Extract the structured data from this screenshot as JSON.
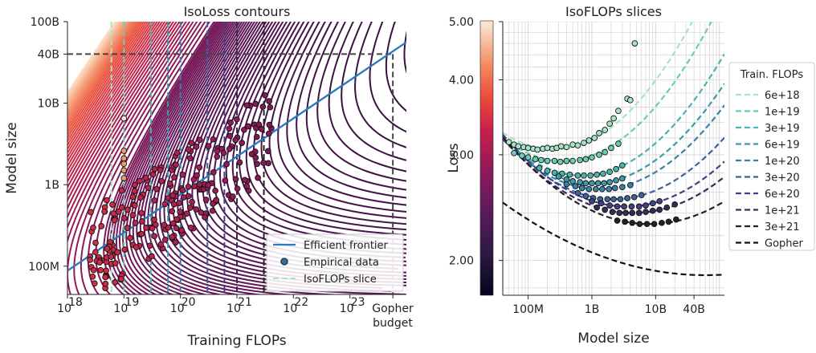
{
  "chart_data": [
    {
      "type": "contour",
      "title": "IsoLoss contours",
      "xlabel": "Training FLOPs",
      "ylabel": "Model size",
      "xscale": "log",
      "yscale": "log",
      "xlim": [
        1e+18,
        1e+24
      ],
      "ylim": [
        45000000.0,
        100000000000.0
      ],
      "x_ticks": [
        {
          "value": 1e+18,
          "base": "10",
          "exp": "18"
        },
        {
          "value": 1e+19,
          "base": "10",
          "exp": "19"
        },
        {
          "value": 1e+20,
          "base": "10",
          "exp": "20"
        },
        {
          "value": 1e+21,
          "base": "10",
          "exp": "21"
        },
        {
          "value": 1e+22,
          "base": "10",
          "exp": "22"
        },
        {
          "value": 1e+23,
          "base": "10",
          "exp": "23"
        }
      ],
      "gopher_budget_label": [
        "Gopher",
        "budget"
      ],
      "gopher_budget_flops": 5.76e+23,
      "y_ticks": [
        {
          "value": 100000000.0,
          "label": "100M"
        },
        {
          "value": 1000000000.0,
          "label": "1B"
        },
        {
          "value": 10000000000.0,
          "label": "10B"
        },
        {
          "value": 40000000000.0,
          "label": "40B"
        },
        {
          "value": 100000000000.0,
          "label": "100B"
        }
      ],
      "frontier": {
        "x": [
          1e+18,
          1e+24
        ],
        "y": [
          88000000.0,
          56000000000.0
        ],
        "color": "#2b7bba"
      },
      "gopher_model_size": 40000000000.0,
      "isoflops_slices": [
        {
          "flops": 6e+18,
          "color": "#a7e3c5"
        },
        {
          "flops": 1e+19,
          "color": "#6ccbb5"
        },
        {
          "flops": 3e+19,
          "color": "#4ab3ae"
        },
        {
          "flops": 6e+19,
          "color": "#3d9aab"
        },
        {
          "flops": 1e+20,
          "color": "#3a80a6"
        },
        {
          "flops": 3e+20,
          "color": "#3d619c"
        },
        {
          "flops": 6e+20,
          "color": "#423f85"
        },
        {
          "flops": 1e+21,
          "color": "#3a2a56"
        },
        {
          "flops": 3e+21,
          "color": "#222222"
        }
      ],
      "legend": {
        "position": "lower-right",
        "entries": [
          "Efficient frontier",
          "Empirical data",
          "IsoFLOPs slice"
        ]
      },
      "grid": false
    },
    {
      "type": "line",
      "title": "IsoFLOPs slices",
      "xlabel": "Model size",
      "ylabel": "Loss",
      "xscale": "log",
      "yscale": "log",
      "xlim": [
        40000000.0,
        120000000000.0
      ],
      "ylim": [
        1.75,
        5.0
      ],
      "x_ticks": [
        {
          "value": 100000000.0,
          "label": "100M"
        },
        {
          "value": 1000000000.0,
          "label": "1B"
        },
        {
          "value": 10000000000.0,
          "label": "10B"
        },
        {
          "value": 40000000000.0,
          "label": "40B"
        }
      ],
      "y_ticks": [
        {
          "value": 2.0,
          "label": "2.00"
        },
        {
          "value": 3.0,
          "label": "3.00"
        },
        {
          "value": 4.0,
          "label": "4.00"
        },
        {
          "value": 5.0,
          "label": "5.00"
        }
      ],
      "grid": true,
      "legend": {
        "position": "right",
        "title": "Train. FLOPs"
      },
      "series": [
        {
          "name": "6e+18",
          "color": "#a7e3c5",
          "optimum_size": 250000000.0,
          "min_loss": 3.06,
          "x_points": [
            50000000.0,
            60000000.0,
            70000000.0,
            85000000.0,
            100000000.0,
            120000000.0,
            140000000.0,
            170000000.0,
            200000000.0,
            240000000.0,
            280000000.0,
            330000000.0,
            400000000.0,
            500000000.0,
            600000000.0,
            750000000.0,
            900000000.0,
            1100000000.0,
            1300000000.0,
            1600000000.0,
            1900000000.0,
            2200000000.0,
            2600000000.0
          ],
          "y_points": [
            3.15,
            3.12,
            3.1,
            3.09,
            3.08,
            3.07,
            3.06,
            3.07,
            3.08,
            3.07,
            3.08,
            3.1,
            3.09,
            3.12,
            3.11,
            3.14,
            3.17,
            3.2,
            3.26,
            3.3,
            3.38,
            3.45,
            3.55
          ],
          "outliers": [
            {
              "x": 3600000000.0,
              "y": 3.72
            },
            {
              "x": 4000000000.0,
              "y": 3.7
            },
            {
              "x": 4700000000.0,
              "y": 4.6
            }
          ]
        },
        {
          "name": "1e+19",
          "color": "#6ccbb5",
          "optimum_size": 350000000.0,
          "min_loss": 2.93,
          "x_points": [
            60000000.0,
            80000000.0,
            100000000.0,
            130000000.0,
            160000000.0,
            200000000.0,
            260000000.0,
            320000000.0,
            400000000.0,
            500000000.0,
            650000000.0,
            800000000.0,
            1000000000.0,
            1300000000.0,
            1600000000.0,
            2000000000.0,
            2600000000.0
          ],
          "y_points": [
            3.02,
            2.99,
            2.97,
            2.95,
            2.94,
            2.93,
            2.93,
            2.92,
            2.93,
            2.93,
            2.94,
            2.95,
            2.97,
            3.0,
            3.03,
            3.08,
            3.13
          ]
        },
        {
          "name": "3e+19",
          "color": "#4ab3ae",
          "optimum_size": 700000000.0,
          "min_loss": 2.77,
          "x_points": [
            150000000.0,
            200000000.0,
            260000000.0,
            340000000.0,
            450000000.0,
            600000000.0,
            750000000.0,
            950000000.0,
            1200000000.0,
            1500000000.0,
            1900000000.0,
            2400000000.0,
            3000000000.0
          ],
          "y_points": [
            2.85,
            2.82,
            2.8,
            2.79,
            2.78,
            2.77,
            2.77,
            2.77,
            2.78,
            2.79,
            2.81,
            2.84,
            2.88
          ]
        },
        {
          "name": "6e+19",
          "color": "#3d9aab",
          "optimum_size": 1000000000.0,
          "min_loss": 2.69,
          "x_points": [
            300000000.0,
            400000000.0,
            500000000.0,
            650000000.0,
            800000000.0,
            1000000000.0,
            1250000000.0,
            1550000000.0,
            1900000000.0,
            2400000000.0,
            3000000000.0
          ],
          "y_points": [
            2.76,
            2.73,
            2.71,
            2.7,
            2.69,
            2.69,
            2.69,
            2.69,
            2.7,
            2.72,
            2.74
          ]
        },
        {
          "name": "1e+20",
          "color": "#3a80a6",
          "optimum_size": 1300000000.0,
          "min_loss": 2.63,
          "x_points": [
            400000000.0,
            550000000.0,
            700000000.0,
            900000000.0,
            1150000000.0,
            1450000000.0,
            1850000000.0,
            2300000000.0,
            3000000000.0,
            4000000000.0
          ],
          "y_points": [
            2.68,
            2.66,
            2.64,
            2.63,
            2.63,
            2.63,
            2.63,
            2.64,
            2.65,
            2.67
          ]
        },
        {
          "name": "3e+20",
          "color": "#3d619c",
          "optimum_size": 2200000000.0,
          "min_loss": 2.53,
          "x_points": [
            600000000.0,
            800000000.0,
            1050000000.0,
            1350000000.0,
            1750000000.0,
            2200000000.0,
            2800000000.0,
            3600000000.0,
            4600000000.0,
            6000000000.0
          ],
          "y_points": [
            2.59,
            2.56,
            2.54,
            2.53,
            2.53,
            2.53,
            2.53,
            2.54,
            2.55,
            2.57
          ]
        },
        {
          "name": "6e+20",
          "color": "#423f85",
          "optimum_size": 3500000000.0,
          "min_loss": 2.46,
          "x_points": [
            1000000000.0,
            1400000000.0,
            1900000000.0,
            2500000000.0,
            3200000000.0,
            4200000000.0,
            5500000000.0,
            7000000000.0,
            9000000000.0,
            11500000000.0
          ],
          "y_points": [
            2.51,
            2.49,
            2.47,
            2.46,
            2.46,
            2.46,
            2.46,
            2.47,
            2.49,
            2.51
          ]
        },
        {
          "name": "1e+21",
          "color": "#3a2a56",
          "optimum_size": 4500000000.0,
          "min_loss": 2.4,
          "x_points": [
            1200000000.0,
            1600000000.0,
            2100000000.0,
            2700000000.0,
            3400000000.0,
            4300000000.0,
            5500000000.0,
            7000000000.0,
            9000000000.0,
            11500000000.0,
            15000000000.0,
            20000000000.0
          ],
          "y_points": [
            2.45,
            2.43,
            2.41,
            2.4,
            2.4,
            2.4,
            2.4,
            2.41,
            2.42,
            2.43,
            2.45,
            2.48
          ]
        },
        {
          "name": "3e+21",
          "color": "#222222",
          "optimum_size": 8000000000.0,
          "min_loss": 2.3,
          "x_points": [
            2500000000.0,
            3300000000.0,
            4300000000.0,
            5600000000.0,
            7300000000.0,
            9500000000.0,
            12500000000.0,
            16000000000.0,
            21000000000.0
          ],
          "y_points": [
            2.33,
            2.32,
            2.31,
            2.3,
            2.3,
            2.3,
            2.31,
            2.32,
            2.34
          ]
        },
        {
          "name": "Gopher",
          "color": "#111111",
          "optimum_size": 60000000000.0,
          "min_loss": 1.89
        }
      ],
      "colorbar": {
        "position": "left",
        "cmap": "rocket"
      }
    }
  ]
}
